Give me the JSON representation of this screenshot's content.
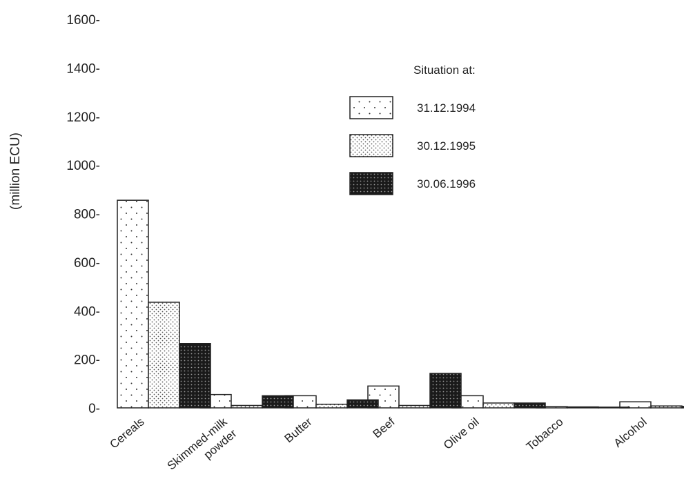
{
  "chart_data": {
    "type": "bar",
    "title": "",
    "xlabel": "",
    "ylabel": "(million ECU)",
    "ylim": [
      0,
      1600
    ],
    "yticks": [
      0,
      200,
      400,
      600,
      800,
      1000,
      1200,
      1400,
      1600
    ],
    "tick_suffix": "-",
    "grid": false,
    "legend": {
      "title": "Situation at:",
      "placement": "top-right"
    },
    "categories": [
      [
        "Cereals"
      ],
      [
        "Skimmed-milk",
        "powder"
      ],
      [
        "Butter"
      ],
      [
        "Beef"
      ],
      [
        "Olive oil"
      ],
      [
        "Tobacco"
      ],
      [
        "Alcohol"
      ]
    ],
    "series": [
      {
        "name": "31.12.1994",
        "pattern": "sparse-dots",
        "values": [
          855,
          55,
          50,
          90,
          50,
          5,
          25
        ]
      },
      {
        "name": "30.12.1995",
        "pattern": "dense-dots",
        "values": [
          435,
          10,
          15,
          10,
          20,
          4,
          8
        ]
      },
      {
        "name": "30.06.1996",
        "pattern": "dark-check",
        "values": [
          265,
          50,
          33,
          142,
          20,
          3,
          6
        ]
      }
    ],
    "colors": {
      "axis": "#222222",
      "background": "#ffffff",
      "dark": "#1a1a1a"
    }
  }
}
